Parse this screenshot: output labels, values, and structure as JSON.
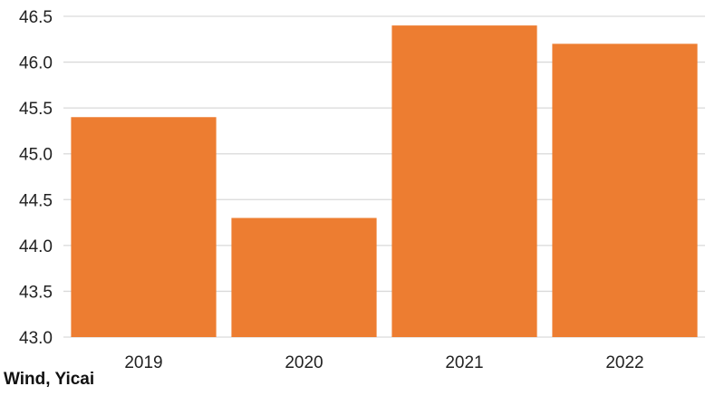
{
  "chart_data": {
    "type": "bar",
    "categories": [
      "2019",
      "2020",
      "2021",
      "2022"
    ],
    "values": [
      45.4,
      44.3,
      46.4,
      46.2
    ],
    "title": "",
    "xlabel": "",
    "ylabel": "",
    "ylim": [
      43.0,
      46.5
    ],
    "yticks": [
      "43.0",
      "43.5",
      "44.0",
      "44.5",
      "45.0",
      "45.5",
      "46.0",
      "46.5"
    ],
    "grid": true,
    "legend": "none",
    "bar_color": "#ED7D31",
    "grid_color": "#D9D9D9"
  },
  "source": "Wind, Yicai"
}
